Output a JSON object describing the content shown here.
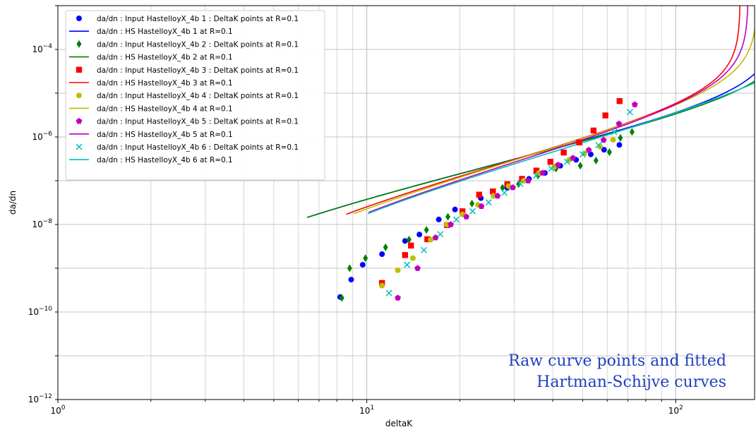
{
  "chart_data": {
    "type": "line",
    "xlabel": "deltaK",
    "ylabel": "da/dn",
    "xscale": "log",
    "yscale": "log",
    "xlim": [
      1,
      180
    ],
    "ylim": [
      1e-12,
      0.001
    ],
    "grid": true,
    "legend_position": "top-left",
    "x_tick_labels": [
      {
        "value": 1,
        "base": "10",
        "exp": "0"
      },
      {
        "value": 10,
        "base": "10",
        "exp": "1"
      },
      {
        "value": 100,
        "base": "10",
        "exp": "2"
      }
    ],
    "y_tick_labels": [
      {
        "value": 1e-12,
        "base": "10",
        "exp": "−12"
      },
      {
        "value": 1e-10,
        "base": "10",
        "exp": "−10"
      },
      {
        "value": 1e-08,
        "base": "10",
        "exp": "−8"
      },
      {
        "value": 1e-06,
        "base": "10",
        "exp": "−6"
      },
      {
        "value": 0.0001,
        "base": "10",
        "exp": "−4"
      }
    ],
    "series": [
      {
        "name": "da/dn : Input HastelloyX_4b 1 : DeltaK points at R=0.1",
        "kind": "points",
        "marker": "circle",
        "color": "#0000ff",
        "x": [
          8.2,
          8.9,
          9.7,
          11.2,
          13.3,
          14.8,
          17.1,
          19.3,
          23.4,
          28.5,
          33.5,
          37.7,
          42.3,
          47.6,
          53.1,
          58.6,
          65.7
        ],
        "y": [
          2.2e-10,
          5.5e-10,
          1.2e-09,
          2.1e-09,
          4.2e-09,
          5.9e-09,
          1.3e-08,
          2.2e-08,
          4e-08,
          6.9e-08,
          1.1e-07,
          1.5e-07,
          2.2e-07,
          3e-07,
          4e-07,
          5.1e-07,
          6.6e-07
        ]
      },
      {
        "name": "da/dn : HS HastelloyX_4b 1 at R=0.1",
        "kind": "line",
        "color": "#0000ff",
        "hs": {
          "D": 1.1e-09,
          "p": 1.65,
          "dk_thr": 6.65,
          "a": 0.55,
          "A": 95
        }
      },
      {
        "name": "da/dn : Input HastelloyX_4b 2 : DeltaK points at R=0.1",
        "kind": "points",
        "marker": "diamond",
        "color": "#008000",
        "x": [
          8.3,
          8.8,
          9.9,
          11.5,
          13.7,
          15.6,
          18.3,
          21.9,
          27.5,
          31.0,
          35.8,
          41.0,
          49.1,
          55.2,
          61.0,
          66.2,
          72.2
        ],
        "y": [
          2.1e-10,
          1e-09,
          1.7e-09,
          3e-09,
          4.5e-09,
          7.5e-09,
          1.5e-08,
          3e-08,
          6.9e-08,
          8.4e-08,
          1.3e-07,
          1.9e-07,
          2.2e-07,
          2.9e-07,
          4.5e-07,
          9.5e-07,
          1.3e-06
        ]
      },
      {
        "name": "da/dn : HS HastelloyX_4b 2 at R=0.1",
        "kind": "line",
        "color": "#008000",
        "hs": {
          "D": 1.1e-09,
          "p": 1.65,
          "dk_thr": 6.6,
          "a": 0.55,
          "A": 106
        }
      },
      {
        "name": "da/dn : Input HastelloyX_4b 3 : DeltaK points at R=0.1",
        "kind": "points",
        "marker": "square",
        "color": "#ff0000",
        "x": [
          11.2,
          13.3,
          13.9,
          15.7,
          18.2,
          20.4,
          23.1,
          25.6,
          28.5,
          31.8,
          35.4,
          39.3,
          43.4,
          48.7,
          54.2,
          59.2,
          65.8
        ],
        "y": [
          4.6e-10,
          2e-09,
          3.3e-09,
          4.6e-09,
          9.7e-09,
          2e-08,
          4.8e-08,
          5.7e-08,
          8.3e-08,
          1.1e-07,
          1.7e-07,
          2.7e-07,
          4.4e-07,
          7.5e-07,
          1.4e-06,
          3.1e-06,
          6.6e-06
        ]
      },
      {
        "name": "da/dn : HS HastelloyX_4b 3 at R=0.1",
        "kind": "line",
        "color": "#ff0000",
        "hs": {
          "D": 6.5e-10,
          "p": 1.8,
          "dk_thr": 8.85,
          "a": 0.5,
          "A": 81
        }
      },
      {
        "name": "da/dn : Input HastelloyX_4b 4 : DeltaK points at R=0.1",
        "kind": "points",
        "marker": "circle",
        "color": "#bfbf00",
        "x": [
          11.2,
          12.6,
          14.1,
          16.1,
          18.2,
          20.4,
          22.9,
          25.7,
          28.8,
          32.2,
          36.1,
          40.5,
          45.2,
          50.6,
          56.9,
          62.7
        ],
        "y": [
          4e-10,
          9e-10,
          1.7e-09,
          4.5e-09,
          1e-08,
          1.7e-08,
          2.8e-08,
          4.5e-08,
          7.5e-08,
          1e-07,
          1.5e-07,
          2.1e-07,
          3e-07,
          4.2e-07,
          6e-07,
          8.6e-07
        ]
      },
      {
        "name": "da/dn : HS HastelloyX_4b 4 at R=0.1",
        "kind": "line",
        "color": "#bfbf00",
        "hs": {
          "D": 5.5e-10,
          "p": 1.85,
          "dk_thr": 9.35,
          "a": 0.5,
          "A": 92
        }
      },
      {
        "name": "da/dn : Input HastelloyX_4b 5 : DeltaK points at R=0.1",
        "kind": "points",
        "marker": "pentagon",
        "color": "#bf00bf",
        "x": [
          12.6,
          14.6,
          16.7,
          18.7,
          21.0,
          23.5,
          26.5,
          29.7,
          33.3,
          37.1,
          41.6,
          46.5,
          52.3,
          58.4,
          65.5,
          73.7
        ],
        "y": [
          2.1e-10,
          1e-09,
          5e-09,
          1e-08,
          1.5e-08,
          2.6e-08,
          4.5e-08,
          7e-08,
          1e-07,
          1.5e-07,
          2.3e-07,
          3.3e-07,
          5e-07,
          8.5e-07,
          2e-06,
          5.5e-06
        ]
      },
      {
        "name": "da/dn : HS HastelloyX_4b 5 at R=0.1",
        "kind": "line",
        "color": "#bf00bf",
        "hs": {
          "D": 4.5e-10,
          "p": 1.88,
          "dk_thr": 10.45,
          "a": 0.5,
          "A": 86
        }
      },
      {
        "name": "da/dn : Input HastelloyX_4b 6 : DeltaK points at R=0.1",
        "kind": "points",
        "marker": "x",
        "color": "#00bfbf",
        "x": [
          11.8,
          13.5,
          15.3,
          17.3,
          19.5,
          22.0,
          24.8,
          27.9,
          31.4,
          35.3,
          39.6,
          44.5,
          50.0,
          56.2,
          63.2,
          71.1
        ],
        "y": [
          2.7e-10,
          1.2e-09,
          2.6e-09,
          6e-09,
          1.3e-08,
          2e-08,
          3.2e-08,
          5.3e-08,
          8.5e-08,
          1.3e-07,
          1.9e-07,
          2.7e-07,
          4e-07,
          6.5e-07,
          1.3e-06,
          3.7e-06
        ]
      },
      {
        "name": "da/dn : HS HastelloyX_4b 6 at R=0.1",
        "kind": "line",
        "color": "#00bfbf",
        "hs": {
          "D": 4.2e-10,
          "p": 1.9,
          "dk_thr": 10.4,
          "a": 0.5,
          "A": 160
        }
      }
    ]
  },
  "annotation": {
    "line1": "Raw curve points and fitted",
    "line2": "Hartman-Schijve curves",
    "color": "#1f3fbf"
  }
}
